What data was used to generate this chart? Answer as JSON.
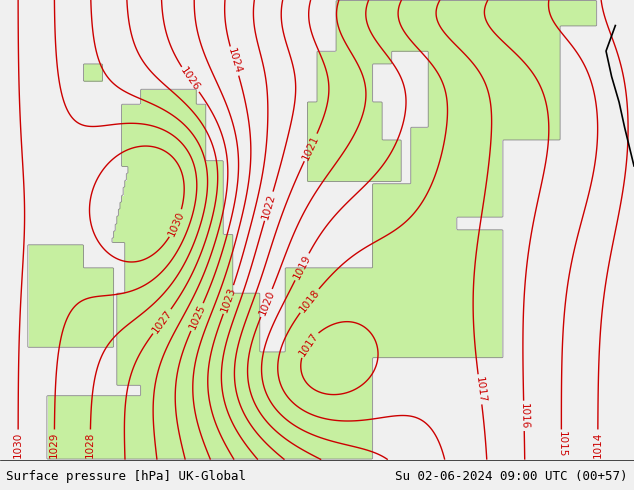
{
  "title_left": "Surface pressure [hPa] UK-Global",
  "title_right": "Su 02-06-2024 09:00 UTC (00+57)",
  "background_color": "#f0f0f0",
  "land_color_rgb": [
    0.78,
    0.94,
    0.63
  ],
  "sea_color": "#e8e8e8",
  "contour_color": "#cc0000",
  "coast_color": "#888888",
  "norway_coast_color": "#000000",
  "contour_linewidth": 1.0,
  "coast_linewidth": 0.6,
  "label_fontsize": 7.5,
  "title_fontsize": 9,
  "figwidth": 6.34,
  "figheight": 4.9,
  "dpi": 100,
  "lon_min": -12,
  "lon_max": 22,
  "lat_min": 47,
  "lat_max": 65
}
